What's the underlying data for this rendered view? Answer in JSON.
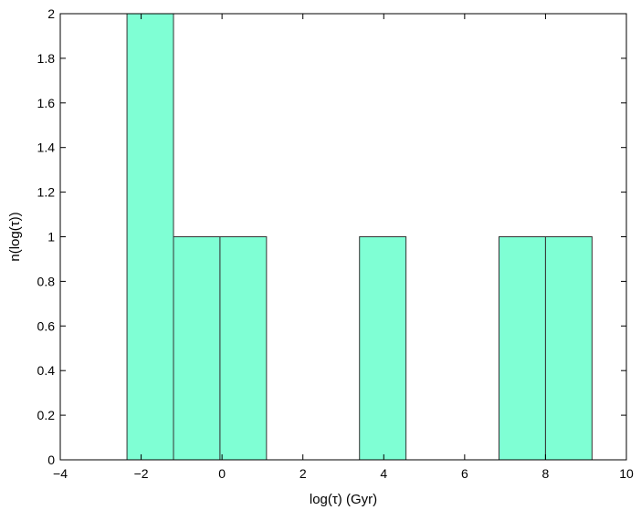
{
  "chart_data": {
    "type": "bar",
    "histogram": true,
    "title": "",
    "xlabel": "log(τ) (Gyr)",
    "ylabel": "n(log(τ))",
    "xlim": [
      -4,
      10
    ],
    "ylim": [
      0,
      2
    ],
    "xticks": [
      -4,
      -2,
      0,
      2,
      4,
      6,
      8,
      10
    ],
    "xtick_labels": [
      "−4",
      "−2",
      "0",
      "2",
      "4",
      "6",
      "8",
      "10"
    ],
    "yticks": [
      0,
      0.2,
      0.4,
      0.6,
      0.8,
      1,
      1.2,
      1.4,
      1.6,
      1.8,
      2
    ],
    "ytick_labels": [
      "0",
      "0.2",
      "0.4",
      "0.6",
      "0.8",
      "1",
      "1.2",
      "1.4",
      "1.6",
      "1.8",
      "2"
    ],
    "grid": false,
    "bar_color": "#7fffd4",
    "edge_color": "#333333",
    "bins": [
      {
        "x0": -2.35,
        "x1": -1.2,
        "value": 2
      },
      {
        "x0": -1.2,
        "x1": -0.05,
        "value": 1
      },
      {
        "x0": -0.05,
        "x1": 1.1,
        "value": 1
      },
      {
        "x0": 1.1,
        "x1": 2.25,
        "value": 0
      },
      {
        "x0": 2.25,
        "x1": 3.4,
        "value": 0
      },
      {
        "x0": 3.4,
        "x1": 4.55,
        "value": 1
      },
      {
        "x0": 4.55,
        "x1": 5.7,
        "value": 0
      },
      {
        "x0": 5.7,
        "x1": 6.85,
        "value": 0
      },
      {
        "x0": 6.85,
        "x1": 8.0,
        "value": 1
      },
      {
        "x0": 8.0,
        "x1": 9.15,
        "value": 1
      }
    ]
  }
}
